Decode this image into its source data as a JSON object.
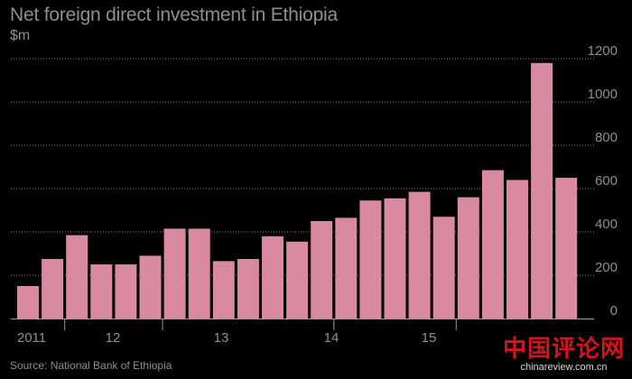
{
  "chart_data": {
    "type": "bar",
    "title": "Net foreign direct investment in Ethiopia",
    "ylabel": "$m",
    "ylim": [
      0,
      1200
    ],
    "yticks": [
      0,
      200,
      400,
      600,
      800,
      1000,
      1200
    ],
    "grid": true,
    "x_group_labels": [
      "2011",
      "12",
      "13",
      "14",
      "15"
    ],
    "values": [
      150,
      275,
      385,
      250,
      250,
      290,
      415,
      415,
      265,
      275,
      380,
      355,
      450,
      465,
      545,
      555,
      585,
      470,
      560,
      685,
      640,
      1180,
      650
    ],
    "bar_color": "#d98aa0",
    "source": "Source: National Bank of Ethiopia"
  },
  "watermark": {
    "main": "中国评论网",
    "sub": "chinareview.com.cn"
  }
}
